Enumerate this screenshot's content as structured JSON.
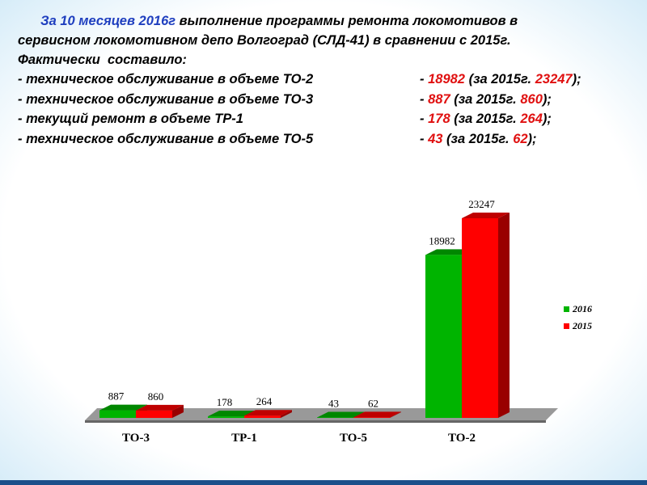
{
  "header": {
    "intro_blue": "За 10 месяцев 2016г",
    "intro_rest": " выполнение программы ремонта локомотивов в",
    "lines": [
      "сервисном локомотивном депо Волгоград (СЛД-41) в сравнении с 2015г.",
      "Фактически  составило:"
    ],
    "items": [
      {
        "label": "- техническое обслуживание в объеме ТО-2",
        "dash": "- ",
        "current": "18982",
        "middle": " (за 2015г. ",
        "previous": "23247",
        "end": ");"
      },
      {
        "label": "- техническое обслуживание в объеме ТО-3",
        "dash": "- ",
        "current": "887",
        "middle": " (за 2015г. ",
        "previous": "860",
        "end": ");"
      },
      {
        "label": "- текущий ремонт в объеме ТР-1",
        "dash": "- ",
        "current": "178",
        "middle": " (за 2015г. ",
        "previous": "264",
        "end": ");"
      },
      {
        "label": "- техническое обслуживание в объеме ТО-5",
        "dash": "- ",
        "current": "43",
        "middle": " (за 2015г. ",
        "previous": "62",
        "end": ");"
      }
    ]
  },
  "chart_data": {
    "type": "bar3d",
    "categories": [
      "ТО-3",
      "ТР-1",
      "ТО-5",
      "ТО-2"
    ],
    "series": [
      {
        "name": "2016",
        "color": "#00b400",
        "values": [
          887,
          178,
          43,
          18982
        ]
      },
      {
        "name": "2015",
        "color": "#ff0000",
        "values": [
          860,
          264,
          62,
          23247
        ]
      }
    ],
    "legend": "right"
  }
}
